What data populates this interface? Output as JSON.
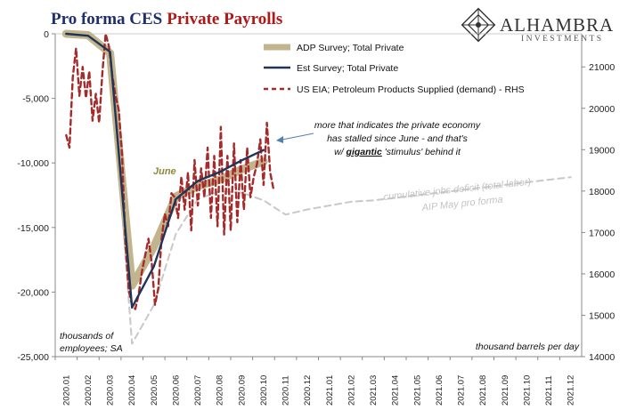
{
  "header": {
    "title_part1": "Pro forma CES",
    "title_part2": "Private Payrolls"
  },
  "logo": {
    "name": "ALHAMBRA",
    "tagline": "INVESTMENTS",
    "icon": "diamond-lattice-icon"
  },
  "colors": {
    "adp": "#c2b48c",
    "est": "#1f3458",
    "eia": "#a52a2a",
    "projection": "#c8c8c8"
  },
  "chart_data": {
    "type": "line",
    "x_categories": [
      "2020.01",
      "2020.02",
      "2020.03",
      "2020.04",
      "2020.05",
      "2020.06",
      "2020.07",
      "2020.08",
      "2020.09",
      "2020.10",
      "2020.11",
      "2020.12",
      "2021.01",
      "2021.02",
      "2021.03",
      "2021.04",
      "2021.05",
      "2021.06",
      "2021.07",
      "2021.08",
      "2021.09",
      "2021.10",
      "2021.11",
      "2021.12"
    ],
    "y_left": {
      "ticks": [
        "0",
        "-5,000",
        "-10,000",
        "-15,000",
        "-20,000",
        "-25,000"
      ],
      "range": [
        -25000,
        0
      ],
      "unit_label": "thousands of employees; SA"
    },
    "y_right": {
      "ticks": [
        "21000",
        "20000",
        "19000",
        "18000",
        "17000",
        "16000",
        "15000",
        "14000"
      ],
      "range": [
        14000,
        21800
      ],
      "unit_label": "thousand barrels per day"
    },
    "series": [
      {
        "name": "ADP Survey; Total Private",
        "axis": "left",
        "style": "thick-band",
        "x": [
          1,
          2,
          3,
          4,
          5,
          6,
          7,
          8,
          9,
          10
        ],
        "y": [
          0,
          -100,
          -1500,
          -19500,
          -16500,
          -12600,
          -11800,
          -11300,
          -10500,
          -9900
        ]
      },
      {
        "name": "Est Survey; Total Private",
        "axis": "left",
        "style": "solid",
        "x": [
          1,
          2,
          3,
          4,
          5,
          6,
          7,
          8,
          9,
          10
        ],
        "y": [
          0,
          -150,
          -1400,
          -21200,
          -18000,
          -12800,
          -11400,
          -10700,
          -9800,
          -9000
        ]
      },
      {
        "name": "US EIA; Petroleum Products Supplied (demand) - RHS",
        "axis": "right",
        "style": "dashed",
        "x": [
          1.0,
          1.15,
          1.3,
          1.45,
          1.6,
          1.75,
          1.9,
          2.05,
          2.2,
          2.35,
          2.5,
          2.65,
          2.8,
          2.95,
          3.1,
          3.25,
          3.4,
          3.55,
          3.7,
          3.85,
          4.0,
          4.15,
          4.3,
          4.45,
          4.6,
          4.75,
          4.9,
          5.05,
          5.2,
          5.35,
          5.5,
          5.65,
          5.8,
          5.95,
          6.1,
          6.25,
          6.4,
          6.55,
          6.7,
          6.85,
          7.0,
          7.15,
          7.3,
          7.45,
          7.6,
          7.75,
          7.9,
          8.05,
          8.2,
          8.35,
          8.5,
          8.65,
          8.8,
          8.95,
          9.1,
          9.25,
          9.4,
          9.55,
          9.7,
          9.85,
          10.0,
          10.15,
          10.3,
          10.45
        ],
        "y": [
          19350,
          19050,
          20750,
          21450,
          20300,
          21000,
          20250,
          20900,
          19700,
          20350,
          19650,
          20850,
          21800,
          21500,
          20800,
          20300,
          19950,
          18850,
          16750,
          15600,
          15250,
          15150,
          15500,
          16050,
          16450,
          16850,
          16250,
          15250,
          15650,
          16850,
          17450,
          17150,
          17950,
          17850,
          17350,
          18350,
          17550,
          18450,
          17050,
          18750,
          17650,
          18550,
          17850,
          19050,
          17350,
          18850,
          17150,
          19550,
          16950,
          18850,
          17050,
          19150,
          17250,
          18750,
          17550,
          19050,
          17850,
          18350,
          18650,
          19250,
          18150,
          19650,
          18450,
          18050
        ]
      },
      {
        "name": "cumulative jobs deficit (total labor)",
        "axis": "left",
        "style": "dotted-projection",
        "x": [
          3,
          4,
          5,
          6,
          7,
          8,
          9,
          10,
          11,
          12,
          13,
          14,
          15,
          16,
          17,
          18,
          19,
          20,
          21,
          22,
          23,
          24
        ],
        "y": [
          -1400,
          -24000,
          -21000,
          -15500,
          -12800,
          -12200,
          -12300,
          -12900,
          -14000,
          -13600,
          -13300,
          -13000,
          -12900,
          -12700,
          -12500,
          -12300,
          -12100,
          -11900,
          -11700,
          -11500,
          -11300,
          -11100
        ]
      }
    ],
    "legend": [
      {
        "label": "ADP Survey; Total Private",
        "style": "thick-band"
      },
      {
        "label": "Est Survey; Total Private",
        "style": "solid"
      },
      {
        "label": "US EIA; Petroleum Products Supplied (demand) - RHS",
        "style": "dashed"
      }
    ],
    "annotations": {
      "june_label": "June",
      "callout_line1": "more that indicates the private economy",
      "callout_line2": "has stalled since June - and that's",
      "callout_pre": "w/ ",
      "callout_emph": "gigantic",
      "callout_post": " 'stimulus' behind it",
      "projection_label1": "cumulative jobs deficit (total labor)",
      "projection_label2": "AIP May pro forma"
    },
    "grid": false
  }
}
